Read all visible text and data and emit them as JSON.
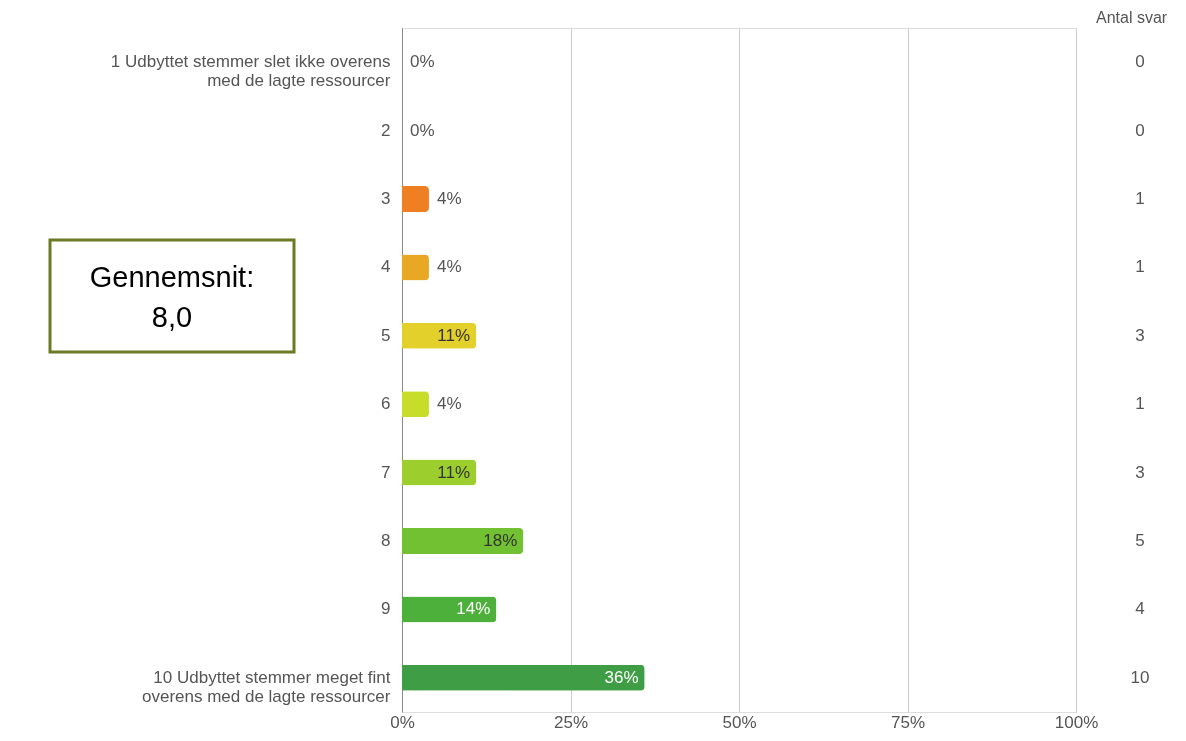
{
  "chart_data": {
    "type": "bar",
    "orientation": "horizontal",
    "categories": [
      "1 Udbyttet stemmer slet ikke overens med de lagte ressourcer",
      "2",
      "3",
      "4",
      "5",
      "6",
      "7",
      "8",
      "9",
      "10  Udbyttet stemmer meget fint overens med de lagte ressourcer"
    ],
    "values": [
      0,
      0,
      4,
      4,
      11,
      4,
      11,
      18,
      14,
      36
    ],
    "colors": [
      "#ee7f22",
      "#ee7f22",
      "#ee7f22",
      "#e8a823",
      "#e3d02a",
      "#c8dc2a",
      "#9ccf2e",
      "#72c132",
      "#4cb03a",
      "#3f9e45"
    ],
    "value_labels": [
      "0%",
      "0%",
      "4%",
      "4%",
      "11%",
      "4%",
      "11%",
      "18%",
      "14%",
      "36%"
    ],
    "xlim": [
      0,
      100
    ],
    "xticks": [
      {
        "value": 0,
        "label": "0%"
      },
      {
        "value": 25,
        "label": "25%"
      },
      {
        "value": 50,
        "label": "50%"
      },
      {
        "value": 75,
        "label": "75%"
      },
      {
        "value": 100,
        "label": "100%"
      }
    ],
    "grid": "x",
    "annotations": [
      "Gennemsnit: 8,0",
      "Antal svar",
      "0",
      "0",
      "1",
      "1",
      "3",
      "1",
      "3",
      "5",
      "4",
      "10"
    ]
  }
}
